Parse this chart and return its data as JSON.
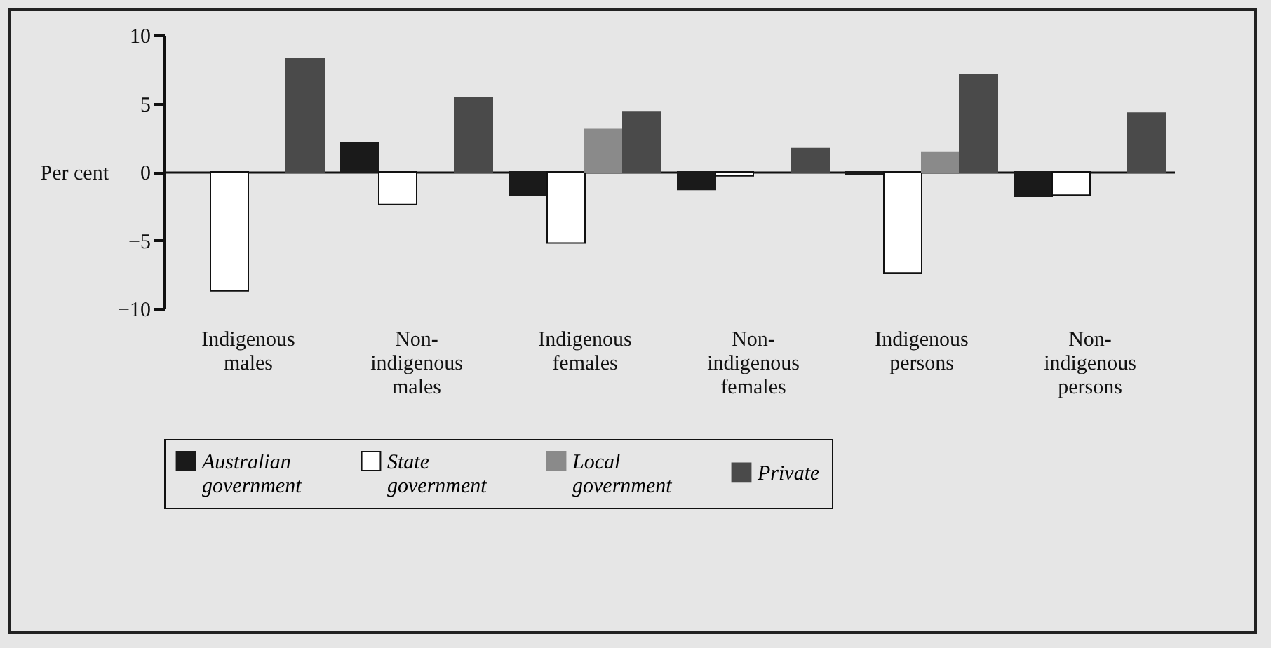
{
  "chart_data": {
    "type": "bar",
    "ylabel": "Per cent",
    "categories": [
      "Indigenous males",
      "Non-indigenous males",
      "Indigenous females",
      "Non-indigenous females",
      "Indigenous persons",
      "Non-indigenous persons"
    ],
    "series": [
      {
        "name": "Australian government",
        "color": "#1a1a1a",
        "values": [
          null,
          2.1,
          -1.7,
          -1.3,
          -0.2,
          -1.8
        ]
      },
      {
        "name": "State government",
        "color": "#ffffff",
        "values": [
          -8.7,
          -2.4,
          -5.2,
          -0.3,
          -7.4,
          -1.7
        ]
      },
      {
        "name": "Local government",
        "color": "#8a8a8a",
        "values": [
          null,
          null,
          3.1,
          null,
          1.4,
          null
        ]
      },
      {
        "name": "Private",
        "color": "#4a4a4a",
        "values": [
          8.3,
          5.4,
          4.4,
          1.7,
          7.1,
          4.3
        ]
      }
    ],
    "ylim": [
      -10,
      10
    ],
    "yticks": [
      -10,
      -5,
      0,
      5,
      10
    ],
    "legend": "bottom"
  }
}
